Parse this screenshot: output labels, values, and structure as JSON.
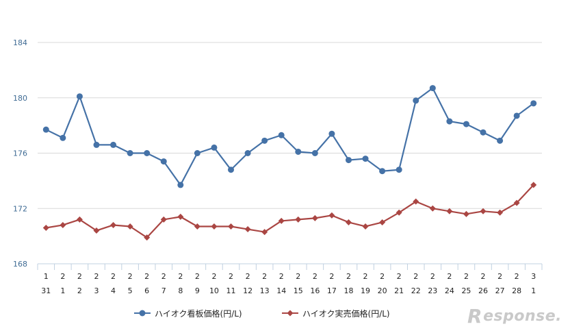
{
  "chart_data": {
    "type": "line",
    "categories": [
      [
        "1",
        "31"
      ],
      [
        "2",
        "1"
      ],
      [
        "2",
        "2"
      ],
      [
        "2",
        "3"
      ],
      [
        "2",
        "4"
      ],
      [
        "2",
        "5"
      ],
      [
        "2",
        "6"
      ],
      [
        "2",
        "7"
      ],
      [
        "2",
        "8"
      ],
      [
        "2",
        "9"
      ],
      [
        "2",
        "10"
      ],
      [
        "2",
        "11"
      ],
      [
        "2",
        "12"
      ],
      [
        "2",
        "13"
      ],
      [
        "2",
        "14"
      ],
      [
        "2",
        "15"
      ],
      [
        "2",
        "16"
      ],
      [
        "2",
        "17"
      ],
      [
        "2",
        "18"
      ],
      [
        "2",
        "19"
      ],
      [
        "2",
        "20"
      ],
      [
        "2",
        "21"
      ],
      [
        "2",
        "22"
      ],
      [
        "2",
        "23"
      ],
      [
        "2",
        "24"
      ],
      [
        "2",
        "25"
      ],
      [
        "2",
        "26"
      ],
      [
        "2",
        "27"
      ],
      [
        "2",
        "28"
      ],
      [
        "3",
        "1"
      ]
    ],
    "series": [
      {
        "name": "ハイオク看板価格(円/L)",
        "color": "#4572a7",
        "marker": "circle",
        "values": [
          177.7,
          177.1,
          180.1,
          176.6,
          176.6,
          176.0,
          176.0,
          175.4,
          173.7,
          176.0,
          176.4,
          174.8,
          176.0,
          176.9,
          177.3,
          176.1,
          176.0,
          177.4,
          175.5,
          175.6,
          174.7,
          174.8,
          179.8,
          180.7,
          178.3,
          178.1,
          177.5,
          176.9,
          178.7,
          179.6
        ]
      },
      {
        "name": "ハイオク実売価格(円/L)",
        "color": "#aa4643",
        "marker": "diamond",
        "values": [
          170.6,
          170.8,
          171.2,
          170.4,
          170.8,
          170.7,
          169.9,
          171.2,
          171.4,
          170.7,
          170.7,
          170.7,
          170.5,
          170.3,
          171.1,
          171.2,
          171.3,
          171.5,
          171.0,
          170.7,
          171.0,
          171.7,
          172.5,
          172.0,
          171.8,
          171.6,
          171.8,
          171.7,
          172.4,
          173.7
        ]
      }
    ],
    "yticks": [
      168,
      172,
      176,
      180,
      184
    ],
    "ylim": [
      168,
      184
    ],
    "grid": true,
    "legend_position": "bottom"
  },
  "watermark": {
    "initial": "R",
    "rest": "esponse."
  }
}
